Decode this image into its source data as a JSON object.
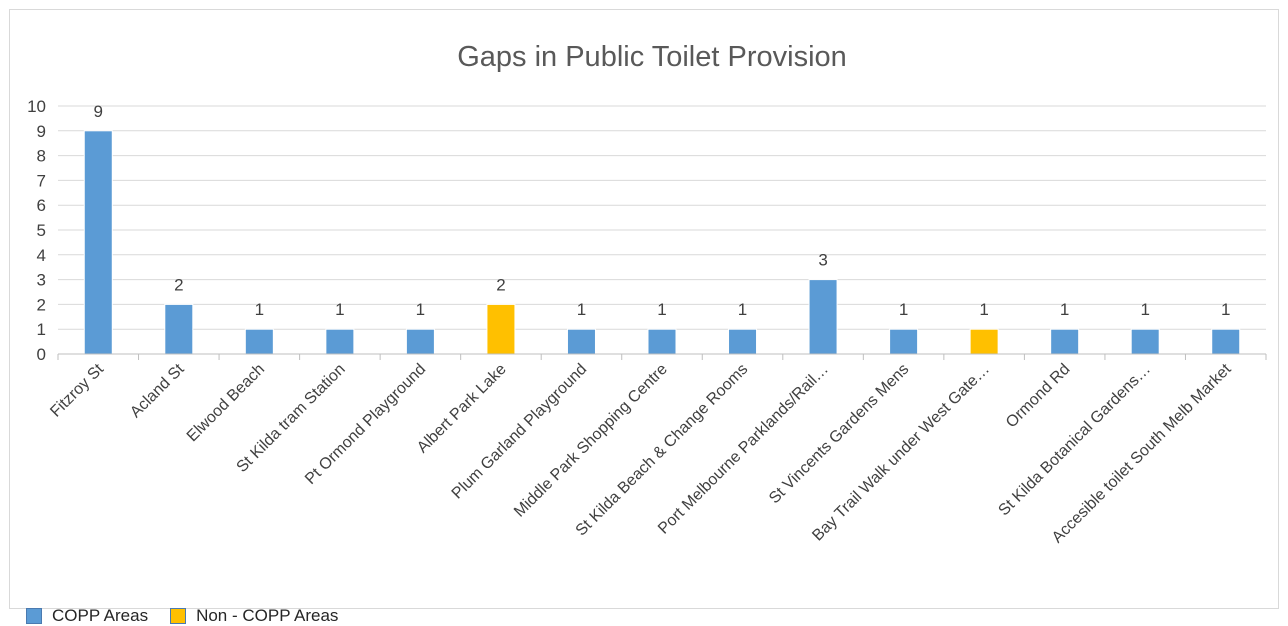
{
  "chart_data": {
    "type": "bar",
    "title": "Gaps in Public Toilet Provision",
    "categories": [
      "Fitzroy St",
      "Acland St",
      "Elwood Beach",
      "St Kilda tram Station",
      "Pt Ormond Playground",
      "Albert Park Lake",
      "Plum Garland Playground",
      "Middle Park Shopping Centre",
      "St Kilda Beach & Change Rooms",
      "Port Melbourne Parklands/Rail…",
      "St Vincents Gardens Mens",
      "Bay Trail Walk under West Gate…",
      "Ormond Rd",
      "St Kilda Botanical Gardens…",
      "Accesible toilet South Melb Market"
    ],
    "values": [
      9,
      2,
      1,
      1,
      1,
      2,
      1,
      1,
      1,
      3,
      1,
      1,
      1,
      1,
      1
    ],
    "groups": [
      "COPP Areas",
      "COPP Areas",
      "COPP Areas",
      "COPP Areas",
      "COPP Areas",
      "Non - COPP Areas",
      "COPP Areas",
      "COPP Areas",
      "COPP Areas",
      "COPP Areas",
      "COPP Areas",
      "Non - COPP Areas",
      "COPP Areas",
      "COPP Areas",
      "COPP Areas"
    ],
    "legend": [
      {
        "name": "COPP Areas",
        "color": "#5b9bd5"
      },
      {
        "name": "Non - COPP Areas",
        "color": "#ffc000"
      }
    ],
    "ylim": [
      0,
      10
    ],
    "yticks": [
      "0",
      "1",
      "2",
      "3",
      "4",
      "5",
      "6",
      "7",
      "8",
      "9",
      "10"
    ],
    "xlabel": "",
    "ylabel": "",
    "grid": true,
    "legend_position": "bottom-left"
  }
}
